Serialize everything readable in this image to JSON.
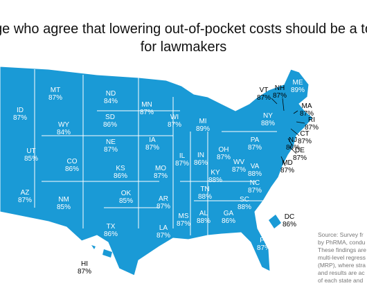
{
  "title": {
    "line1": "ge who agree that lowering out-of-pocket costs should be a to",
    "line2": "for lawmakers"
  },
  "states": [
    {
      "abbr": "MT",
      "value": "87%"
    },
    {
      "abbr": "ND",
      "value": "84%"
    },
    {
      "abbr": "MN",
      "value": "87%"
    },
    {
      "abbr": "SD",
      "value": "86%"
    },
    {
      "abbr": "WY",
      "value": "84%"
    },
    {
      "abbr": "ID",
      "value": "87%"
    },
    {
      "abbr": "WI",
      "value": "87%"
    },
    {
      "abbr": "MI",
      "value": "89%"
    },
    {
      "abbr": "NE",
      "value": "87%"
    },
    {
      "abbr": "IA",
      "value": "87%"
    },
    {
      "abbr": "UT",
      "value": "85%"
    },
    {
      "abbr": "CO",
      "value": "86%"
    },
    {
      "abbr": "KS",
      "value": "86%"
    },
    {
      "abbr": "IL",
      "value": "87%"
    },
    {
      "abbr": "IN",
      "value": "86%"
    },
    {
      "abbr": "OH",
      "value": "87%"
    },
    {
      "abbr": "PA",
      "value": "87%"
    },
    {
      "abbr": "NY",
      "value": "88%"
    },
    {
      "abbr": "MO",
      "value": "87%"
    },
    {
      "abbr": "KY",
      "value": "88%"
    },
    {
      "abbr": "WV",
      "value": "87%"
    },
    {
      "abbr": "VA",
      "value": "88%"
    },
    {
      "abbr": "AZ",
      "value": "87%"
    },
    {
      "abbr": "NM",
      "value": "85%"
    },
    {
      "abbr": "OK",
      "value": "85%"
    },
    {
      "abbr": "AR",
      "value": "87%"
    },
    {
      "abbr": "TN",
      "value": "88%"
    },
    {
      "abbr": "NC",
      "value": "87%"
    },
    {
      "abbr": "SC",
      "value": "88%"
    },
    {
      "abbr": "TX",
      "value": "86%"
    },
    {
      "abbr": "LA",
      "value": "87%"
    },
    {
      "abbr": "MS",
      "value": "87%"
    },
    {
      "abbr": "AL",
      "value": "88%"
    },
    {
      "abbr": "GA",
      "value": "86%"
    },
    {
      "abbr": "FL",
      "value": "87%"
    },
    {
      "abbr": "ME",
      "value": "89%"
    },
    {
      "abbr": "VT",
      "value": "87%"
    },
    {
      "abbr": "NH",
      "value": "87%"
    },
    {
      "abbr": "MA",
      "value": "87%"
    },
    {
      "abbr": "RI",
      "value": "87%"
    },
    {
      "abbr": "CT",
      "value": "87%"
    },
    {
      "abbr": "NJ",
      "value": "86%"
    },
    {
      "abbr": "DE",
      "value": "87%"
    },
    {
      "abbr": "MD",
      "value": "87%"
    },
    {
      "abbr": "DC",
      "value": "86%"
    },
    {
      "abbr": "HI",
      "value": "87%"
    }
  ],
  "source": [
    "Source: Survey fr",
    "by PhRMA, condu",
    "These findings are",
    "multi-level regress",
    "(MRP), where stra",
    "and results are ac",
    "of each state and"
  ]
}
